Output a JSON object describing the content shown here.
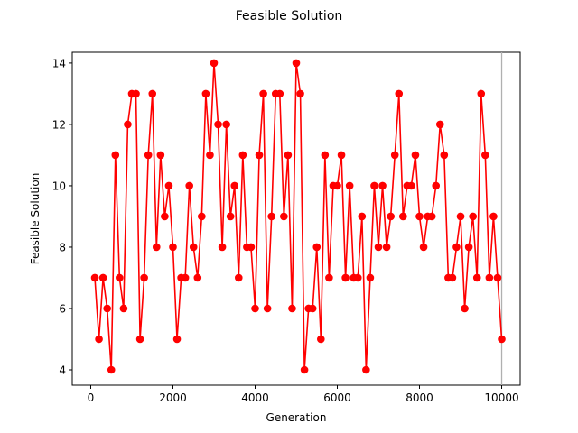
{
  "chart_data": {
    "type": "line",
    "title": "Feasible Solution",
    "xlabel": "Generation",
    "ylabel": "Feasible Solution",
    "xlim": [
      -450,
      10450
    ],
    "ylim": [
      3.5,
      14.35
    ],
    "xticks": [
      0,
      2000,
      4000,
      6000,
      8000,
      10000
    ],
    "yticks": [
      4,
      6,
      8,
      10,
      12,
      14
    ],
    "grid": false,
    "legend": "none",
    "vline_x": 10000,
    "series": [
      {
        "color": "#ff0000",
        "marker": "circle",
        "x": [
          100,
          200,
          300,
          400,
          500,
          600,
          700,
          800,
          900,
          1000,
          1100,
          1200,
          1300,
          1400,
          1500,
          1600,
          1700,
          1800,
          1900,
          2000,
          2100,
          2200,
          2300,
          2400,
          2500,
          2600,
          2700,
          2800,
          2900,
          3000,
          3100,
          3200,
          3300,
          3400,
          3500,
          3600,
          3700,
          3800,
          3900,
          4000,
          4100,
          4200,
          4300,
          4400,
          4500,
          4600,
          4700,
          4800,
          4900,
          5000,
          5100,
          5200,
          5300,
          5400,
          5500,
          5600,
          5700,
          5800,
          5900,
          6000,
          6100,
          6200,
          6300,
          6400,
          6500,
          6600,
          6700,
          6800,
          6900,
          7000,
          7100,
          7200,
          7300,
          7400,
          7500,
          7600,
          7700,
          7800,
          7900,
          8000,
          8100,
          8200,
          8300,
          8400,
          8500,
          8600,
          8700,
          8800,
          8900,
          9000,
          9100,
          9200,
          9300,
          9400,
          9500,
          9600,
          9700,
          9800,
          9900,
          10000
        ],
        "y": [
          7,
          5,
          7,
          6,
          4,
          11,
          7,
          6,
          12,
          13,
          13,
          5,
          7,
          11,
          13,
          8,
          11,
          9,
          10,
          8,
          5,
          7,
          7,
          10,
          8,
          7,
          9,
          13,
          11,
          14,
          12,
          8,
          12,
          9,
          10,
          7,
          11,
          8,
          8,
          6,
          11,
          13,
          6,
          9,
          13,
          13,
          9,
          11,
          6,
          14,
          13,
          4,
          6,
          6,
          8,
          5,
          11,
          7,
          10,
          10,
          11,
          7,
          10,
          7,
          7,
          9,
          4,
          7,
          10,
          8,
          10,
          8,
          9,
          11,
          13,
          9,
          10,
          10,
          11,
          9,
          8,
          9,
          9,
          10,
          12,
          11,
          7,
          7,
          8,
          9,
          6,
          8,
          9,
          7,
          13,
          11,
          7,
          9,
          7,
          5
        ]
      }
    ],
    "vline_color": "#b0b0b0"
  }
}
